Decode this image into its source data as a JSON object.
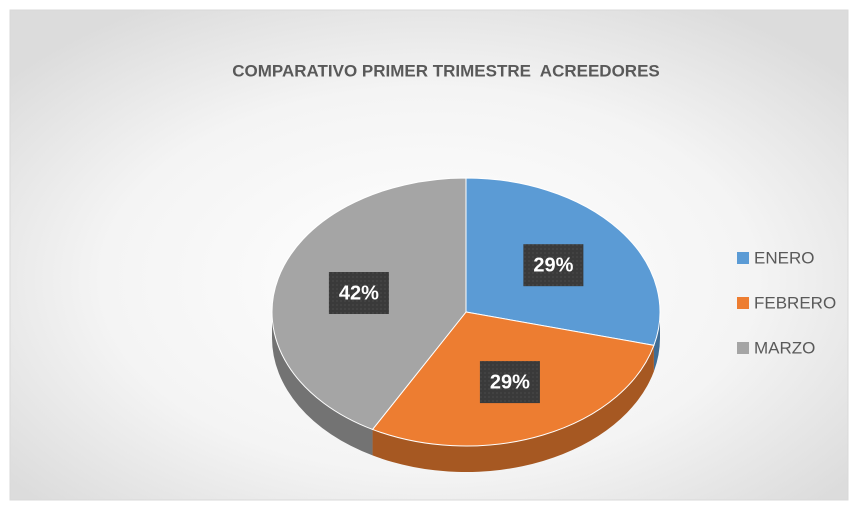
{
  "chart_data": {
    "type": "pie",
    "title": "COMPARATIVO PRIMER TRIMESTRE  ACREEDORES",
    "categories": [
      "ENERO",
      "FEBRERO",
      "MARZO"
    ],
    "values": [
      29,
      29,
      42
    ],
    "value_labels": [
      "29%",
      "29%",
      "42%"
    ],
    "colors": [
      "#5b9bd5",
      "#ed7d31",
      "#a5a5a5"
    ],
    "legend": "right"
  }
}
